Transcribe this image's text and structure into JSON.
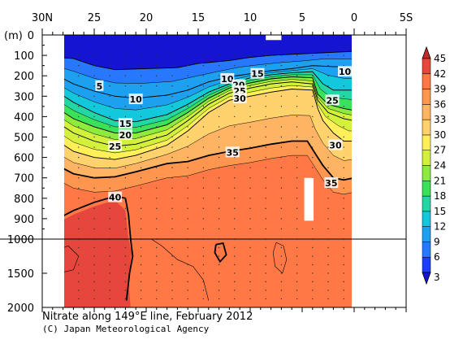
{
  "chart_data": {
    "type": "heatmap",
    "title": "Nitrate along 149°E line, February 2012",
    "credit": "(C) Japan Meteorological Agency",
    "xlabel": "",
    "ylabel": "(m)",
    "x_range": [
      30,
      -5
    ],
    "x_ticks": [
      "30N",
      "25",
      "20",
      "15",
      "10",
      "5",
      "0",
      "5S"
    ],
    "x_tick_values": [
      30,
      25,
      20,
      15,
      10,
      5,
      0,
      -5
    ],
    "y_ticks_upper": [
      "0",
      "100",
      "200",
      "300",
      "400",
      "500",
      "600",
      "700",
      "800",
      "900",
      "1000"
    ],
    "y_tick_upper_values": [
      0,
      100,
      200,
      300,
      400,
      500,
      600,
      700,
      800,
      900,
      1000
    ],
    "y_ticks_lower": [
      "1500",
      "2000"
    ],
    "y_tick_lower_values": [
      1500,
      2000
    ],
    "y_break_depth": 1000,
    "data_range_lat": [
      28.5,
      0
    ],
    "colorbar": {
      "levels": [
        3,
        6,
        9,
        12,
        15,
        18,
        21,
        24,
        27,
        30,
        33,
        36,
        39,
        42,
        45
      ],
      "labels": [
        "3",
        "6",
        "9",
        "12",
        "15",
        "18",
        "21",
        "24",
        "27",
        "30",
        "33",
        "36",
        "39",
        "42",
        "45"
      ],
      "colors": [
        "#1414d2",
        "#1e3cff",
        "#2878ff",
        "#1ea0f0",
        "#14c8dc",
        "#23d7a5",
        "#3ce15a",
        "#8ceb3c",
        "#d2f03c",
        "#fff05a",
        "#ffd26e",
        "#ffb464",
        "#ff9650",
        "#ff7846",
        "#e6463c",
        "#c82828"
      ]
    },
    "contour_labels": [
      {
        "text": "5",
        "lat": 24.5,
        "depth": 250
      },
      {
        "text": "10",
        "lat": 21.0,
        "depth": 315
      },
      {
        "text": "15",
        "lat": 22.0,
        "depth": 435
      },
      {
        "text": "20",
        "lat": 22.0,
        "depth": 490
      },
      {
        "text": "25",
        "lat": 23.0,
        "depth": 545
      },
      {
        "text": "40",
        "lat": 23.0,
        "depth": 795
      },
      {
        "text": "10",
        "lat": 12.2,
        "depth": 215
      },
      {
        "text": "15",
        "lat": 9.3,
        "depth": 190
      },
      {
        "text": "20",
        "lat": 11.1,
        "depth": 245
      },
      {
        "text": "25",
        "lat": 11.0,
        "depth": 275
      },
      {
        "text": "30",
        "lat": 11.0,
        "depth": 310
      },
      {
        "text": "35",
        "lat": 11.7,
        "depth": 575
      },
      {
        "text": "30",
        "lat": 1.8,
        "depth": 540
      },
      {
        "text": "35",
        "lat": 2.2,
        "depth": 725
      },
      {
        "text": "25",
        "lat": 2.1,
        "depth": 320
      },
      {
        "text": "10",
        "lat": 0.9,
        "depth": 180
      }
    ],
    "contours": [
      {
        "value": 5,
        "points": [
          [
            28.5,
            110
          ],
          [
            27,
            115
          ],
          [
            25,
            150
          ],
          [
            23,
            170
          ],
          [
            20,
            165
          ],
          [
            17,
            160
          ],
          [
            15,
            140
          ],
          [
            12,
            125
          ],
          [
            10,
            110
          ],
          [
            8,
            100
          ],
          [
            6,
            95
          ],
          [
            4,
            90
          ],
          [
            2,
            85
          ],
          [
            0,
            80
          ]
        ]
      },
      {
        "value": 10,
        "points": [
          [
            28.5,
            200
          ],
          [
            27,
            240
          ],
          [
            25,
            275
          ],
          [
            23,
            300
          ],
          [
            21,
            310
          ],
          [
            18,
            295
          ],
          [
            16,
            270
          ],
          [
            14,
            230
          ],
          [
            12,
            205
          ],
          [
            10,
            190
          ],
          [
            8,
            175
          ],
          [
            6,
            165
          ],
          [
            4,
            150
          ],
          [
            2,
            155
          ],
          [
            0,
            155
          ]
        ]
      },
      {
        "value": 15,
        "points": [
          [
            28.5,
            280
          ],
          [
            27,
            330
          ],
          [
            25,
            380
          ],
          [
            23,
            420
          ],
          [
            21,
            425
          ],
          [
            18,
            390
          ],
          [
            16,
            340
          ],
          [
            14,
            280
          ],
          [
            12,
            240
          ],
          [
            10,
            210
          ],
          [
            8,
            195
          ],
          [
            6,
            185
          ],
          [
            4,
            180
          ],
          [
            3,
            240
          ],
          [
            2,
            270
          ],
          [
            0,
            270
          ]
        ]
      },
      {
        "value": 20,
        "points": [
          [
            28.5,
            360
          ],
          [
            27,
            410
          ],
          [
            25,
            450
          ],
          [
            23,
            480
          ],
          [
            21,
            480
          ],
          [
            18,
            440
          ],
          [
            16,
            380
          ],
          [
            14,
            310
          ],
          [
            12,
            260
          ],
          [
            10,
            235
          ],
          [
            8,
            215
          ],
          [
            6,
            205
          ],
          [
            4,
            210
          ],
          [
            3.5,
            290
          ],
          [
            2.5,
            340
          ],
          [
            1,
            360
          ],
          [
            0,
            370
          ]
        ]
      },
      {
        "value": 25,
        "points": [
          [
            28.5,
            430
          ],
          [
            27,
            480
          ],
          [
            25,
            520
          ],
          [
            23,
            545
          ],
          [
            21,
            535
          ],
          [
            18,
            490
          ],
          [
            16,
            420
          ],
          [
            14,
            340
          ],
          [
            12,
            285
          ],
          [
            10,
            260
          ],
          [
            8,
            240
          ],
          [
            6,
            230
          ],
          [
            4,
            240
          ],
          [
            3.5,
            320
          ],
          [
            2.5,
            380
          ],
          [
            1,
            410
          ],
          [
            0,
            420
          ]
        ]
      },
      {
        "value": 30,
        "points": [
          [
            28.5,
            520
          ],
          [
            27,
            570
          ],
          [
            25,
            600
          ],
          [
            23,
            610
          ],
          [
            21,
            590
          ],
          [
            18,
            540
          ],
          [
            16,
            470
          ],
          [
            14,
            380
          ],
          [
            12,
            320
          ],
          [
            10,
            300
          ],
          [
            8,
            280
          ],
          [
            6,
            265
          ],
          [
            4,
            270
          ],
          [
            3.5,
            360
          ],
          [
            3,
            420
          ],
          [
            2,
            480
          ],
          [
            1,
            520
          ],
          [
            0,
            520
          ]
        ]
      },
      {
        "value": 35,
        "points": [
          [
            28.5,
            640
          ],
          [
            27,
            680
          ],
          [
            25,
            700
          ],
          [
            23,
            695
          ],
          [
            21,
            670
          ],
          [
            18,
            630
          ],
          [
            16,
            620
          ],
          [
            14,
            590
          ],
          [
            12,
            570
          ],
          [
            10,
            555
          ],
          [
            8,
            535
          ],
          [
            6,
            520
          ],
          [
            4.5,
            520
          ],
          [
            4,
            560
          ],
          [
            3,
            640
          ],
          [
            2,
            700
          ],
          [
            1,
            710
          ],
          [
            0,
            700
          ]
        ]
      },
      {
        "value": 40,
        "points": [
          [
            28.5,
            900
          ],
          [
            27,
            860
          ],
          [
            25,
            820
          ],
          [
            23,
            790
          ],
          [
            22,
            800
          ],
          [
            21.7,
            880
          ],
          [
            21.5,
            1000
          ],
          [
            21.3,
            1250
          ],
          [
            21.6,
            1500
          ],
          [
            21.9,
            1900
          ]
        ]
      }
    ],
    "bands": [
      {
        "level": 1,
        "top_values": [
          [
            28.5,
            0
          ],
          [
            0,
            0
          ]
        ],
        "note": ""
      },
      {
        "level": 2
      },
      {
        "level": 3
      }
    ],
    "missing_boxes": [
      {
        "lat": [
          4.8,
          3.9
        ],
        "depth": [
          700,
          910
        ]
      },
      {
        "lat": [
          8.5,
          7.0
        ],
        "depth": [
          0,
          25
        ]
      }
    ]
  }
}
